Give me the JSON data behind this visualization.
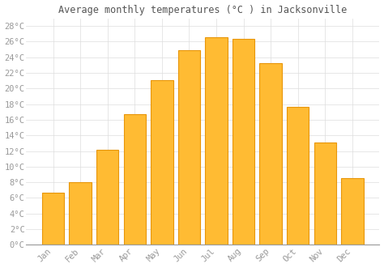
{
  "title": "Average monthly temperatures (°C ) in Jacksonville",
  "months": [
    "Jan",
    "Feb",
    "Mar",
    "Apr",
    "May",
    "Jun",
    "Jul",
    "Aug",
    "Sep",
    "Oct",
    "Nov",
    "Dec"
  ],
  "values": [
    6.7,
    8.0,
    12.2,
    16.7,
    21.1,
    24.9,
    26.6,
    26.4,
    23.3,
    17.7,
    13.1,
    8.5
  ],
  "bar_color": "#FFBB33",
  "bar_edge_color": "#E8960A",
  "background_color": "#FFFFFF",
  "grid_color": "#DDDDDD",
  "ylim": [
    0,
    29
  ],
  "yticks": [
    0,
    2,
    4,
    6,
    8,
    10,
    12,
    14,
    16,
    18,
    20,
    22,
    24,
    26,
    28
  ],
  "title_fontsize": 8.5,
  "tick_fontsize": 7.5,
  "tick_color": "#999999",
  "title_color": "#555555",
  "bar_width": 0.82
}
